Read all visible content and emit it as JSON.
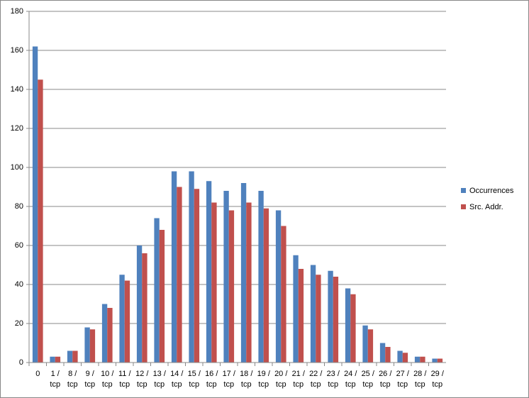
{
  "chart_data": {
    "type": "bar",
    "categories": [
      "0",
      "1 / tcp",
      "8 / tcp",
      "9 / tcp",
      "10 / tcp",
      "11 / tcp",
      "12 / tcp",
      "13 / tcp",
      "14 / tcp",
      "15 / tcp",
      "16 / tcp",
      "17 / tcp",
      "18 / tcp",
      "19 / tcp",
      "20 / tcp",
      "21 / tcp",
      "22 / tcp",
      "23 / tcp",
      "24 / tcp",
      "25 / tcp",
      "26 / tcp",
      "27 / tcp",
      "28 / tcp",
      "29 / tcp"
    ],
    "series": [
      {
        "name": "Occurrences",
        "color": "#4f81bd",
        "values": [
          162,
          3,
          6,
          18,
          30,
          45,
          60,
          74,
          98,
          98,
          93,
          88,
          92,
          88,
          78,
          55,
          50,
          47,
          38,
          19,
          10,
          6,
          3,
          2
        ]
      },
      {
        "name": "Src. Addr.",
        "color": "#c0504d",
        "values": [
          145,
          3,
          6,
          17,
          28,
          42,
          56,
          68,
          90,
          89,
          82,
          78,
          82,
          79,
          70,
          48,
          45,
          44,
          35,
          17,
          8,
          5,
          3,
          2
        ]
      }
    ],
    "ylim": [
      0,
      180
    ],
    "yticks": [
      0,
      20,
      40,
      60,
      80,
      100,
      120,
      140,
      160,
      180
    ],
    "grid": true,
    "legend": "right"
  }
}
